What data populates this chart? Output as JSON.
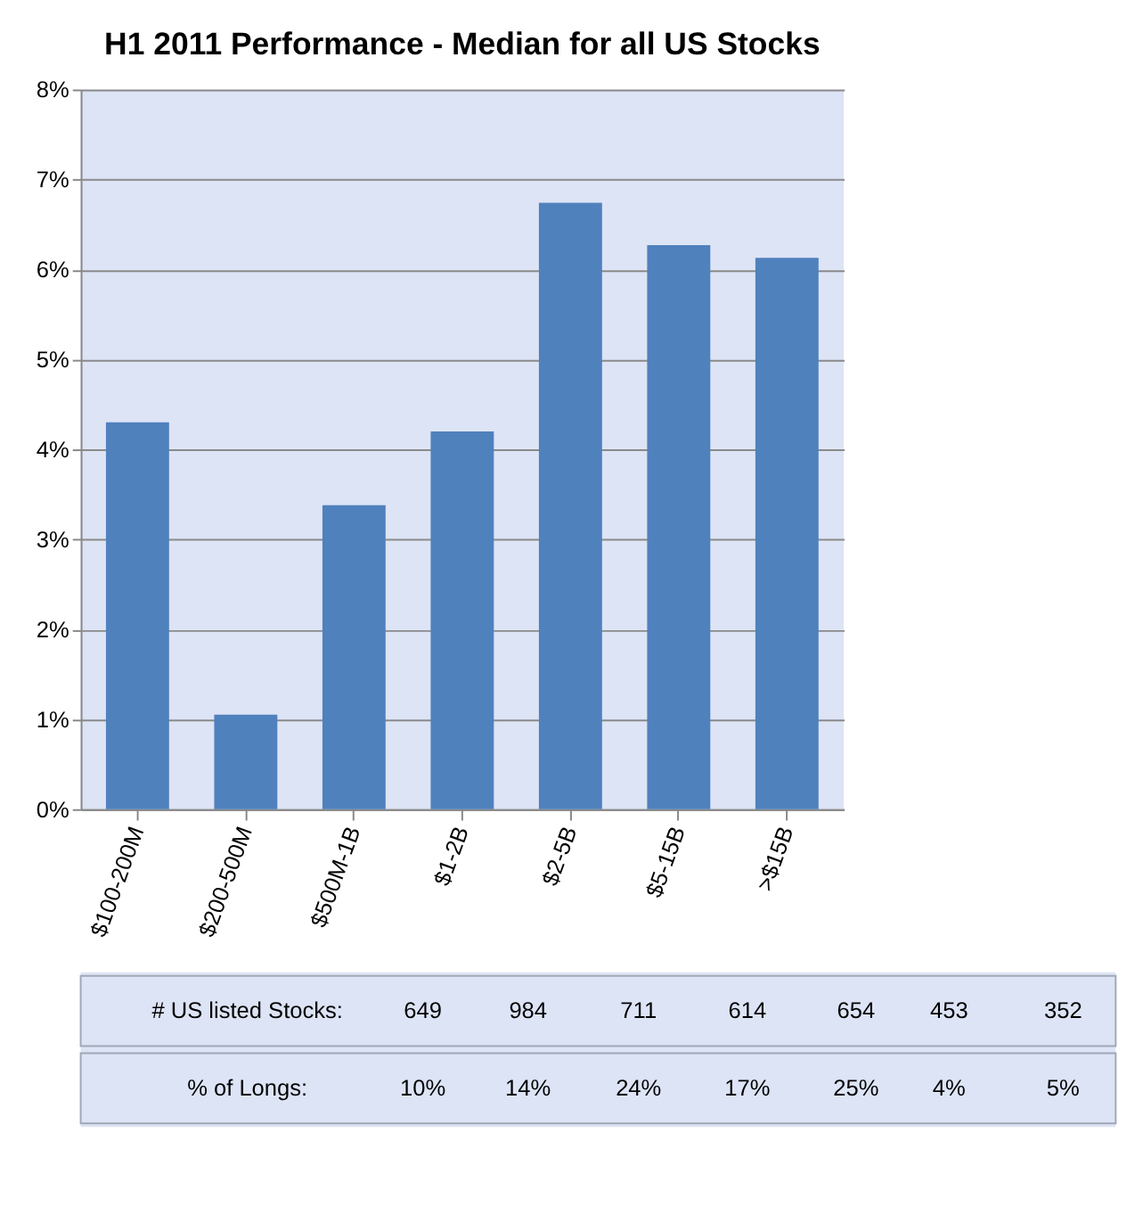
{
  "chart_data": {
    "type": "bar",
    "title": "H1 2011 Performance - Median for all US Stocks",
    "categories": [
      "$100-200M",
      "$200-500M",
      "$500M-1B",
      "$1-2B",
      "$2-5B",
      "$5-15B",
      ">$15B"
    ],
    "values": [
      4.3,
      1.05,
      3.38,
      4.2,
      6.74,
      6.27,
      6.13
    ],
    "color": "#4f81bd",
    "ylim": [
      0,
      8
    ],
    "yticks": [
      {
        "value": 0,
        "label": "0%"
      },
      {
        "value": 1,
        "label": "1%"
      },
      {
        "value": 2,
        "label": "2%"
      },
      {
        "value": 3,
        "label": "3%"
      },
      {
        "value": 4,
        "label": "4%"
      },
      {
        "value": 5,
        "label": "5%"
      },
      {
        "value": 6,
        "label": "6%"
      },
      {
        "value": 7,
        "label": "7%"
      },
      {
        "value": 8,
        "label": "8%"
      }
    ],
    "grid": "y",
    "annotations": [
      "# US listed Stocks:",
      "649",
      "984",
      "711",
      "614",
      "654",
      "453",
      "352",
      "% of Longs:",
      "10%",
      "14%",
      "24%",
      "17%",
      "25%",
      "4%",
      "5%"
    ]
  }
}
